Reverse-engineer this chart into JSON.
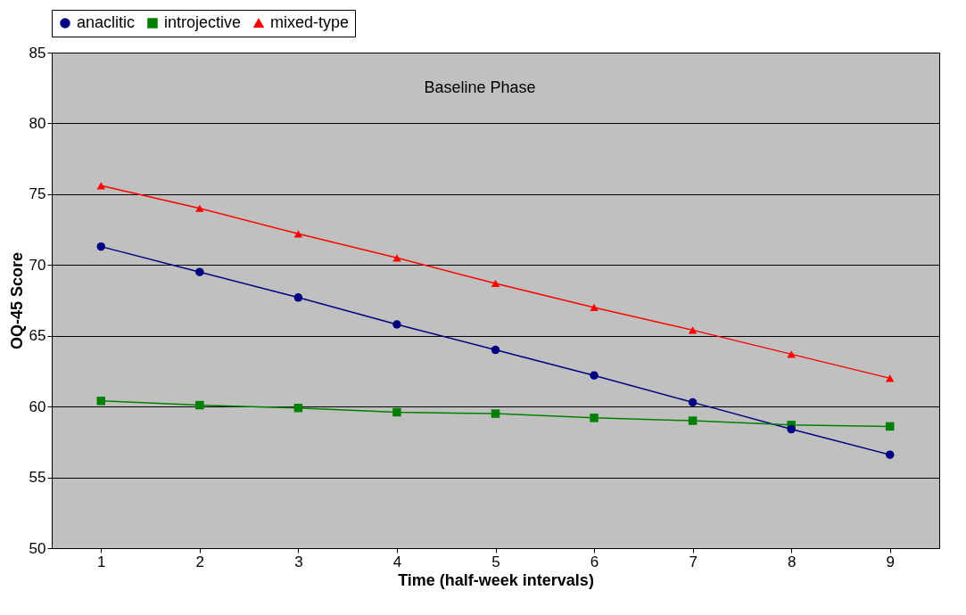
{
  "chart_data": {
    "type": "line",
    "xlabel": "Time (half-week intervals)",
    "ylabel": "OQ-45 Score",
    "categories": [
      "1",
      "2",
      "3",
      "4",
      "5",
      "6",
      "7",
      "8",
      "9"
    ],
    "series": [
      {
        "name": "anaclitic",
        "color": "#000080",
        "marker": "circle",
        "values": [
          71.3,
          69.5,
          67.7,
          65.8,
          64.0,
          62.2,
          60.3,
          58.4,
          56.6
        ]
      },
      {
        "name": "introjective",
        "color": "#008000",
        "marker": "square",
        "values": [
          60.4,
          60.1,
          59.9,
          59.6,
          59.5,
          59.2,
          59.0,
          58.7,
          58.6
        ]
      },
      {
        "name": "mixed-type",
        "color": "#ff0000",
        "marker": "triangle",
        "values": [
          75.6,
          74.0,
          72.2,
          70.5,
          68.7,
          67.0,
          65.4,
          63.7,
          62.0
        ]
      }
    ],
    "ylim": [
      50,
      85
    ],
    "yticks": [
      50,
      55,
      60,
      65,
      70,
      75,
      80,
      85
    ],
    "grid": "y",
    "legend": "top",
    "annotations": [
      "Baseline Phase"
    ]
  }
}
